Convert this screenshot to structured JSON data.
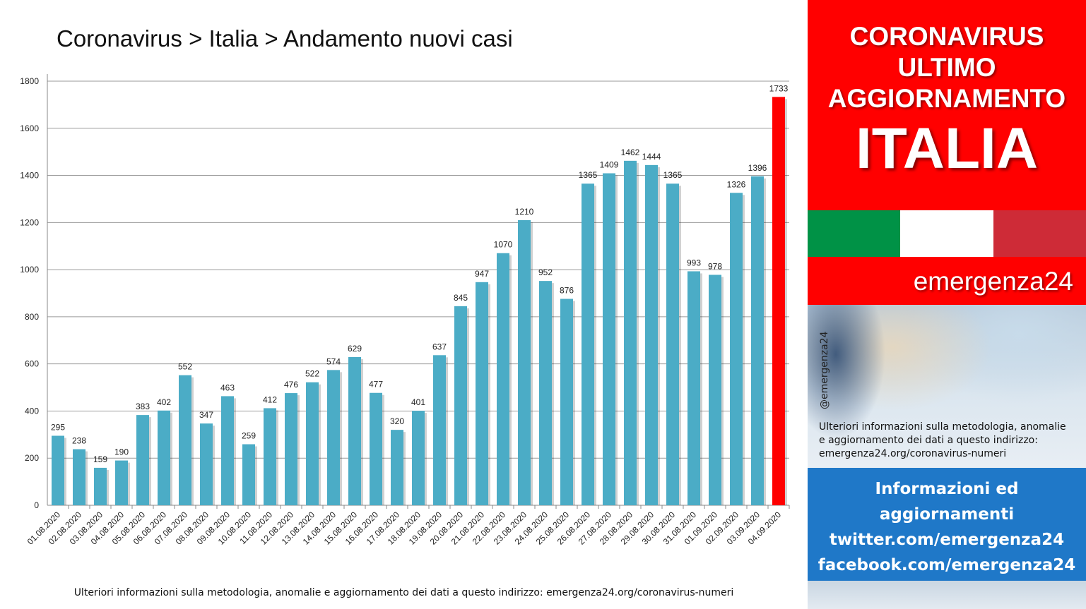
{
  "title": "Coronavirus > Italia > Andamento nuovi casi",
  "footnote": "Ulteriori informazioni sulla metodologia, anomalie e aggiornamento dei dati a questo indirizzo: emergenza24.org/coronavirus-numeri",
  "chart_data": {
    "type": "bar",
    "title": "Coronavirus > Italia > Andamento nuovi casi",
    "xlabel": "",
    "ylabel": "",
    "ylim": [
      0,
      1800
    ],
    "yticks": [
      0,
      200,
      400,
      600,
      800,
      1000,
      1200,
      1400,
      1600,
      1800
    ],
    "grid": true,
    "legend": "none",
    "categories": [
      "01.08.2020",
      "02.08.2020",
      "03.08.2020",
      "04.08.2020",
      "05.08.2020",
      "06.08.2020",
      "07.08.2020",
      "08.08.2020",
      "09.08.2020",
      "10.08.2020",
      "11.08.2020",
      "12.08.2020",
      "13.08.2020",
      "14.08.2020",
      "15.08.2020",
      "16.08.2020",
      "17.08.2020",
      "18.08.2020",
      "19.08.2020",
      "20.08.2020",
      "21.08.2020",
      "22.08.2020",
      "23.08.2020",
      "24.08.2020",
      "25.08.2020",
      "26.08.2020",
      "27.08.2020",
      "28.08.2020",
      "29.08.2020",
      "30.08.2020",
      "31.08.2020",
      "01.09.2020",
      "02.09.2020",
      "03.09.2020",
      "04.09.2020"
    ],
    "values": [
      295,
      238,
      159,
      190,
      383,
      402,
      552,
      347,
      463,
      259,
      412,
      476,
      522,
      574,
      629,
      477,
      320,
      401,
      637,
      845,
      947,
      1070,
      1210,
      952,
      876,
      1365,
      1409,
      1462,
      1444,
      1365,
      993,
      978,
      1326,
      1396,
      1733
    ],
    "bar_color": "#4bacc6",
    "highlight_color": "#ff0000",
    "highlight_index": 34
  },
  "sidebar": {
    "header_lines": [
      "CORONAVIRUS",
      "ULTIMO",
      "AGGIORNAMENTO"
    ],
    "big_word": "ITALIA",
    "flag_colors": [
      "#009246",
      "#ffffff",
      "#ce2b37"
    ],
    "brand": "emergenza24",
    "handle": "@emergenza24",
    "note_lines": [
      "Ulteriori informazioni sulla metodologia, anomalie",
      "e aggiornamento dei dati a questo indirizzo:",
      "emergenza24.org/coronavirus-numeri"
    ],
    "info_lines": [
      "Informazioni ed",
      "aggiornamenti",
      "twitter.com/emergenza24",
      "facebook.com/emergenza24"
    ]
  }
}
